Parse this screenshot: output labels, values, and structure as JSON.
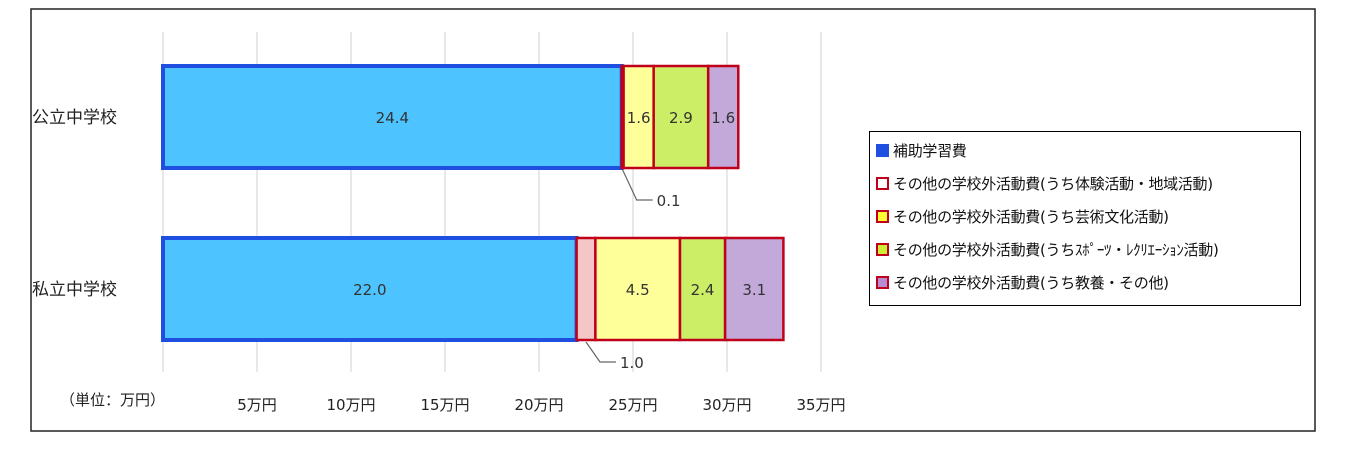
{
  "chart_data": {
    "type": "bar",
    "orientation": "horizontal",
    "stacked": true,
    "unit_label": "（単位：万円）",
    "categories": [
      "公立中学校",
      "私立中学校"
    ],
    "xlim": [
      0,
      35
    ],
    "x_ticks": [
      5,
      10,
      15,
      20,
      25,
      30,
      35
    ],
    "x_tick_labels": [
      "5万円",
      "10万円",
      "15万円",
      "20万円",
      "25万円",
      "30万円",
      "35万円"
    ],
    "grid": true,
    "legend_position": "right",
    "series": [
      {
        "name": "補助学習費",
        "values": [
          24.4,
          22.0
        ],
        "fill": "#4dc3ff",
        "stroke": "#1f4fe0",
        "labels": [
          "24.4",
          "22.0"
        ]
      },
      {
        "name": "その他の学校外活動費(うち体験活動・地域活動)",
        "values": [
          0.1,
          1.0
        ],
        "fill": "#f5c6c8",
        "stroke": "#c0001a",
        "labels": [
          "0.1",
          "1.0"
        ]
      },
      {
        "name": "その他の学校外活動費(うち芸術文化活動)",
        "values": [
          1.6,
          4.5
        ],
        "fill": "#ffff99",
        "stroke": "#c0001a",
        "labels": [
          "1.6",
          "4.5"
        ]
      },
      {
        "name": "その他の学校外活動費(うちｽﾎﾟｰﾂ・ﾚｸﾘｴｰｼｮﾝ活動)",
        "values": [
          2.9,
          2.4
        ],
        "fill": "#ccee66",
        "stroke": "#c0001a",
        "labels": [
          "2.9",
          "2.4"
        ]
      },
      {
        "name": "その他の学校外活動費(うち教養・その他)",
        "values": [
          1.6,
          3.1
        ],
        "fill": "#c2a9d9",
        "stroke": "#c0001a",
        "labels": [
          "1.6",
          "3.1"
        ]
      }
    ],
    "legend_swatch_colors": {
      "fill": [
        "#1f4fe0",
        "#ffffff",
        "#ffff33",
        "#ccee33",
        "#b98ad6"
      ],
      "stroke": [
        "#1f4fe0",
        "#c0001a",
        "#c0001a",
        "#c0001a",
        "#c0001a"
      ]
    }
  }
}
